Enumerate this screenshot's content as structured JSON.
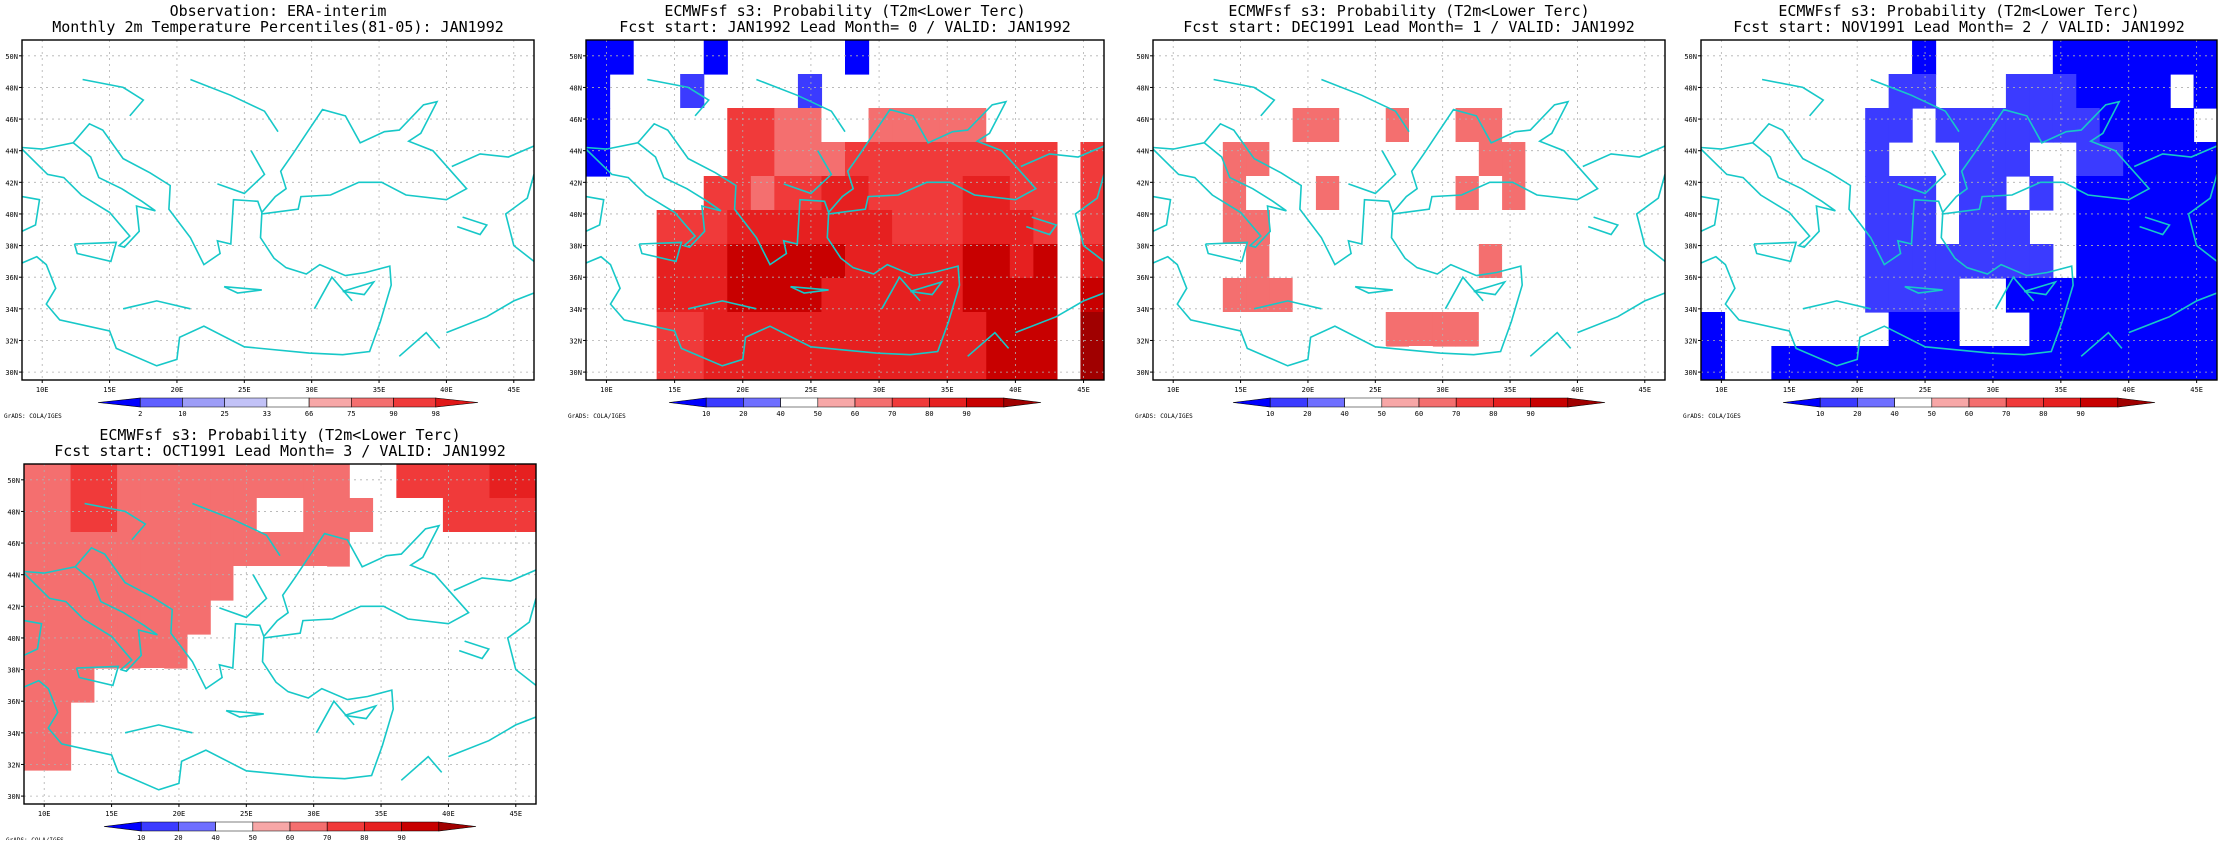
{
  "palettes": {
    "obs": [
      "#0000ff",
      "#5f5fff",
      "#9d9df7",
      "#c2c2f7",
      "#ffffff",
      "#f7a7a7",
      "#f46f6f",
      "#f03a3a",
      "#e01818"
    ],
    "prob": [
      "#0000ff",
      "#3b3bff",
      "#6f6fff",
      "#ffffff",
      "#f7a7a7",
      "#f46f6f",
      "#f03a3a",
      "#e62020",
      "#c80000",
      "#a00000"
    ]
  },
  "charts": [
    {
      "title_line1": "Observation: ERA-interim",
      "title_line2": "Monthly 2m Temperature Percentiles(81-05): JAN1992",
      "palette": "obs",
      "colorbar_ticks": [
        "2",
        "10",
        "25",
        "33",
        "66",
        "75",
        "90",
        "98"
      ],
      "credit": "GrADS: COLA/IGES"
    },
    {
      "title_line1": "ECMWFsf s3: Probability (T2m<Lower Terc)",
      "title_line2": "Fcst start: JAN1992  Lead Month= 0 / VALID: JAN1992",
      "palette": "prob",
      "colorbar_ticks": [
        "10",
        "20",
        "40",
        "50",
        "60",
        "70",
        "80",
        "90"
      ],
      "credit": "GrADS: COLA/IGES"
    },
    {
      "title_line1": "ECMWFsf s3: Probability (T2m<Lower Terc)",
      "title_line2": "Fcst start: DEC1991  Lead Month= 1 / VALID: JAN1992",
      "palette": "prob",
      "colorbar_ticks": [
        "10",
        "20",
        "40",
        "50",
        "60",
        "70",
        "80",
        "90"
      ],
      "credit": "GrADS: COLA/IGES"
    },
    {
      "title_line1": "ECMWFsf s3: Probability (T2m<Lower Terc)",
      "title_line2": "Fcst start: NOV1991  Lead Month= 2 / VALID: JAN1992",
      "palette": "prob",
      "colorbar_ticks": [
        "10",
        "20",
        "40",
        "50",
        "60",
        "70",
        "80",
        "90"
      ],
      "credit": "GrADS: COLA/IGES"
    },
    {
      "title_line1": "ECMWFsf s3: Probability (T2m<Lower Terc)",
      "title_line2": "Fcst start: OCT1991  Lead Month= 3 / VALID: JAN1992",
      "palette": "prob",
      "colorbar_ticks": [
        "10",
        "20",
        "40",
        "50",
        "60",
        "70",
        "80",
        "90"
      ],
      "credit": "GrADS: COLA/IGES"
    }
  ],
  "chart_data": [
    {
      "type": "heatmap",
      "title": "Observation: ERA-interim",
      "subtitle": "Monthly 2m Temperature Percentiles(81-05): JAN1992",
      "x_ticks": [
        "10E",
        "15E",
        "20E",
        "25E",
        "30E",
        "35E",
        "40E",
        "45E"
      ],
      "y_ticks": [
        "30N",
        "32N",
        "34N",
        "36N",
        "38N",
        "40N",
        "42N",
        "44N",
        "46N",
        "48N",
        "50N"
      ],
      "x_range": [
        8.5,
        46.5
      ],
      "y_range": [
        29.5,
        51.0
      ],
      "grid": true,
      "levels": [
        "2",
        "10",
        "25",
        "33",
        "66",
        "75",
        "90",
        "98"
      ],
      "cells": [
        "WWWWWWWWWWWWWWWWWWWWWW",
        "WWWWWWWWWWWWWWWWWWWWWW",
        "WWWWWWWWWWWWWWWWWWWWWW",
        "WWWWWWWWWWWWWWWWWWWWWW",
        "WWWWWWWWWWWWWWWWWWWWWW",
        "WWWWWWWWWWWWWWWWWWWWWW",
        "WWWWWWWWWWWWWWWWWWWWWW",
        "WWWWWWWWWWWWWWWWWWWWWW",
        "WWWWWWWWWWWWWWWWWWWWWW",
        "WWWWWWWWWWWWWWWWWWWWWW"
      ]
    },
    {
      "type": "heatmap",
      "title": "ECMWFsf s3: Probability (T2m<Lower Terc)",
      "subtitle": "Fcst start: JAN1992  Lead Month= 0 / VALID: JAN1992",
      "x_ticks": [
        "10E",
        "15E",
        "20E",
        "25E",
        "30E",
        "35E",
        "40E",
        "45E"
      ],
      "y_ticks": [
        "30N",
        "32N",
        "34N",
        "36N",
        "38N",
        "40N",
        "42N",
        "44N",
        "46N",
        "48N",
        "50N"
      ],
      "x_range": [
        8.5,
        46.5
      ],
      "y_range": [
        29.5,
        51.0
      ],
      "grid": true,
      "levels": [
        "10",
        "20",
        "40",
        "50",
        "60",
        "70",
        "80",
        "90"
      ],
      "cells": [
        "00WWW0WWWWW0WWWWWWWWWW",
        "0WWW1WWWW1WWWWW3WWWWWW",
        "0WWW3366553355555333WW",
        "0WW33366555666666666W6",
        "WWW33665667766667766W6",
        "W3366677777776667776W6",
        "W3377788888777778878W7",
        "W3377788887777778888W8",
        "W3366777777777777888W9",
        "W3366777777777777888W9"
      ]
    },
    {
      "type": "heatmap",
      "title": "ECMWFsf s3: Probability (T2m<Lower Terc)",
      "subtitle": "Fcst start: DEC1991  Lead Month= 1 / VALID: JAN1992",
      "x_ticks": [
        "10E",
        "15E",
        "20E",
        "25E",
        "30E",
        "35E",
        "40E",
        "45E"
      ],
      "y_ticks": [
        "30N",
        "32N",
        "34N",
        "36N",
        "38N",
        "40N",
        "42N",
        "44N",
        "46N",
        "48N",
        "50N"
      ],
      "x_range": [
        8.5,
        46.5
      ],
      "y_range": [
        29.5,
        51.0
      ],
      "grid": true,
      "levels": [
        "10",
        "20",
        "40",
        "50",
        "60",
        "70",
        "80",
        "90"
      ],
      "cells": [
        "3WW33333W33333WWWWWWWW",
        "3W333333333333333W3WWW",
        "WW33335533533553333WWW",
        "333553333333335533W3WW",
        "3335333533333535333WWW",
        "33W55W33333W333333WWWW",
        "33335333333W335333WWWW",
        "333555333333333333WWWW",
        "3333333333555533333WWW",
        "WW3W333333W3WW33333WWW"
      ]
    },
    {
      "type": "heatmap",
      "title": "ECMWFsf s3: Probability (T2m<Lower Terc)",
      "subtitle": "Fcst start: NOV1991  Lead Month= 2 / VALID: JAN1992",
      "x_ticks": [
        "10E",
        "15E",
        "20E",
        "25E",
        "30E",
        "35E",
        "40E",
        "45E"
      ],
      "y_ticks": [
        "30N",
        "32N",
        "34N",
        "36N",
        "38N",
        "40N",
        "42N",
        "44N",
        "46N",
        "48N",
        "50N"
      ],
      "x_range": [
        8.5,
        46.5
      ],
      "y_range": [
        29.5,
        51.0
      ],
      "grid": true,
      "levels": [
        "10",
        "20",
        "40",
        "50",
        "60",
        "70",
        "80",
        "90"
      ],
      "cells": [
        "3333333WW0WWWWW0000000",
        "333333WW11WWW1110000W0",
        "3WWW3WW11W11111110000W",
        "33WWWWW1WWW111WW110000",
        "3WWWWWW111W11W1W000000",
        "WWWWWWW111W111WW000000",
        "WWWWWWW11111111W000000",
        "WWWWWWW1111WW000000000",
        "0WWWWWWW000WWW00000000",
        "0WW0000000000000000000"
      ]
    },
    {
      "type": "heatmap",
      "title": "ECMWFsf s3: Probability (T2m<Lower Terc)",
      "subtitle": "Fcst start: OCT1991  Lead Month= 3 / VALID: JAN1992",
      "x_ticks": [
        "10E",
        "15E",
        "20E",
        "25E",
        "30E",
        "35E",
        "40E",
        "45E"
      ],
      "y_ticks": [
        "30N",
        "32N",
        "34N",
        "36N",
        "38N",
        "40N",
        "42N",
        "44N",
        "46N",
        "48N",
        "50N"
      ],
      "x_range": [
        8.5,
        46.5
      ],
      "y_range": [
        29.5,
        51.0
      ],
      "grid": true,
      "levels": [
        "10",
        "20",
        "40",
        "50",
        "60",
        "70",
        "80",
        "90"
      ],
      "cells": [
        "5566555555555533666677",
        "5566555555335553336666",
        "5555555555555533333333",
        "5555555553333WWWWWWWWW",
        "55555555W3WWWWWWWWWWWW",
        "5555555WW3WWWWWWWWWWWW",
        "555WW3WWWWWWWWWWWWWWWW",
        "55WWWWWWWWWWWWWWWWWWWW",
        "55WWWWWWWWWWWWWWWWWWWW",
        "WWWWWWWWWWWWWWWWWWWWWW"
      ]
    }
  ]
}
